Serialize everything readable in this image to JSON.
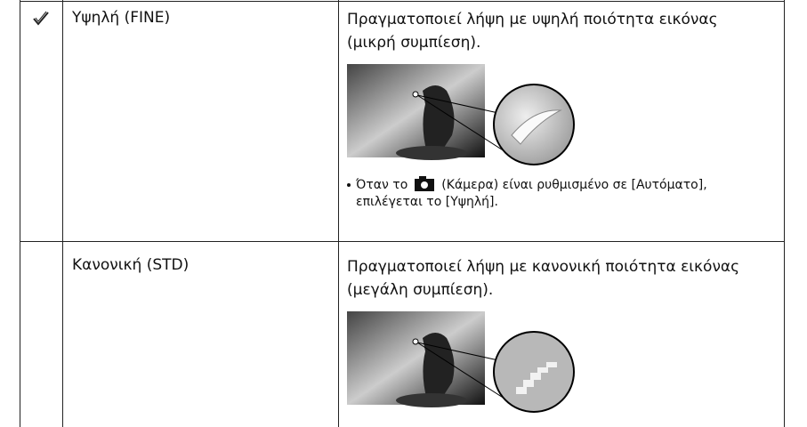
{
  "table": {
    "rows": [
      {
        "setting": "Υψηλή (FINE)",
        "description": "Πραγματοποιεί λήψη με υψηλή ποιότητα εικόνας (μικρή συμπίεση).",
        "note_before": "Όταν το",
        "note_after": "(Κάμερα) είναι ρυθμισμένο σε [Αυτόματο], επιλέγεται το [Υψηλή]."
      },
      {
        "setting": "Κανονική (STD)",
        "description": "Πραγματοποιεί λήψη με κανονική ποιότητα εικόνας (μεγάλη συμπίεση)."
      }
    ]
  }
}
